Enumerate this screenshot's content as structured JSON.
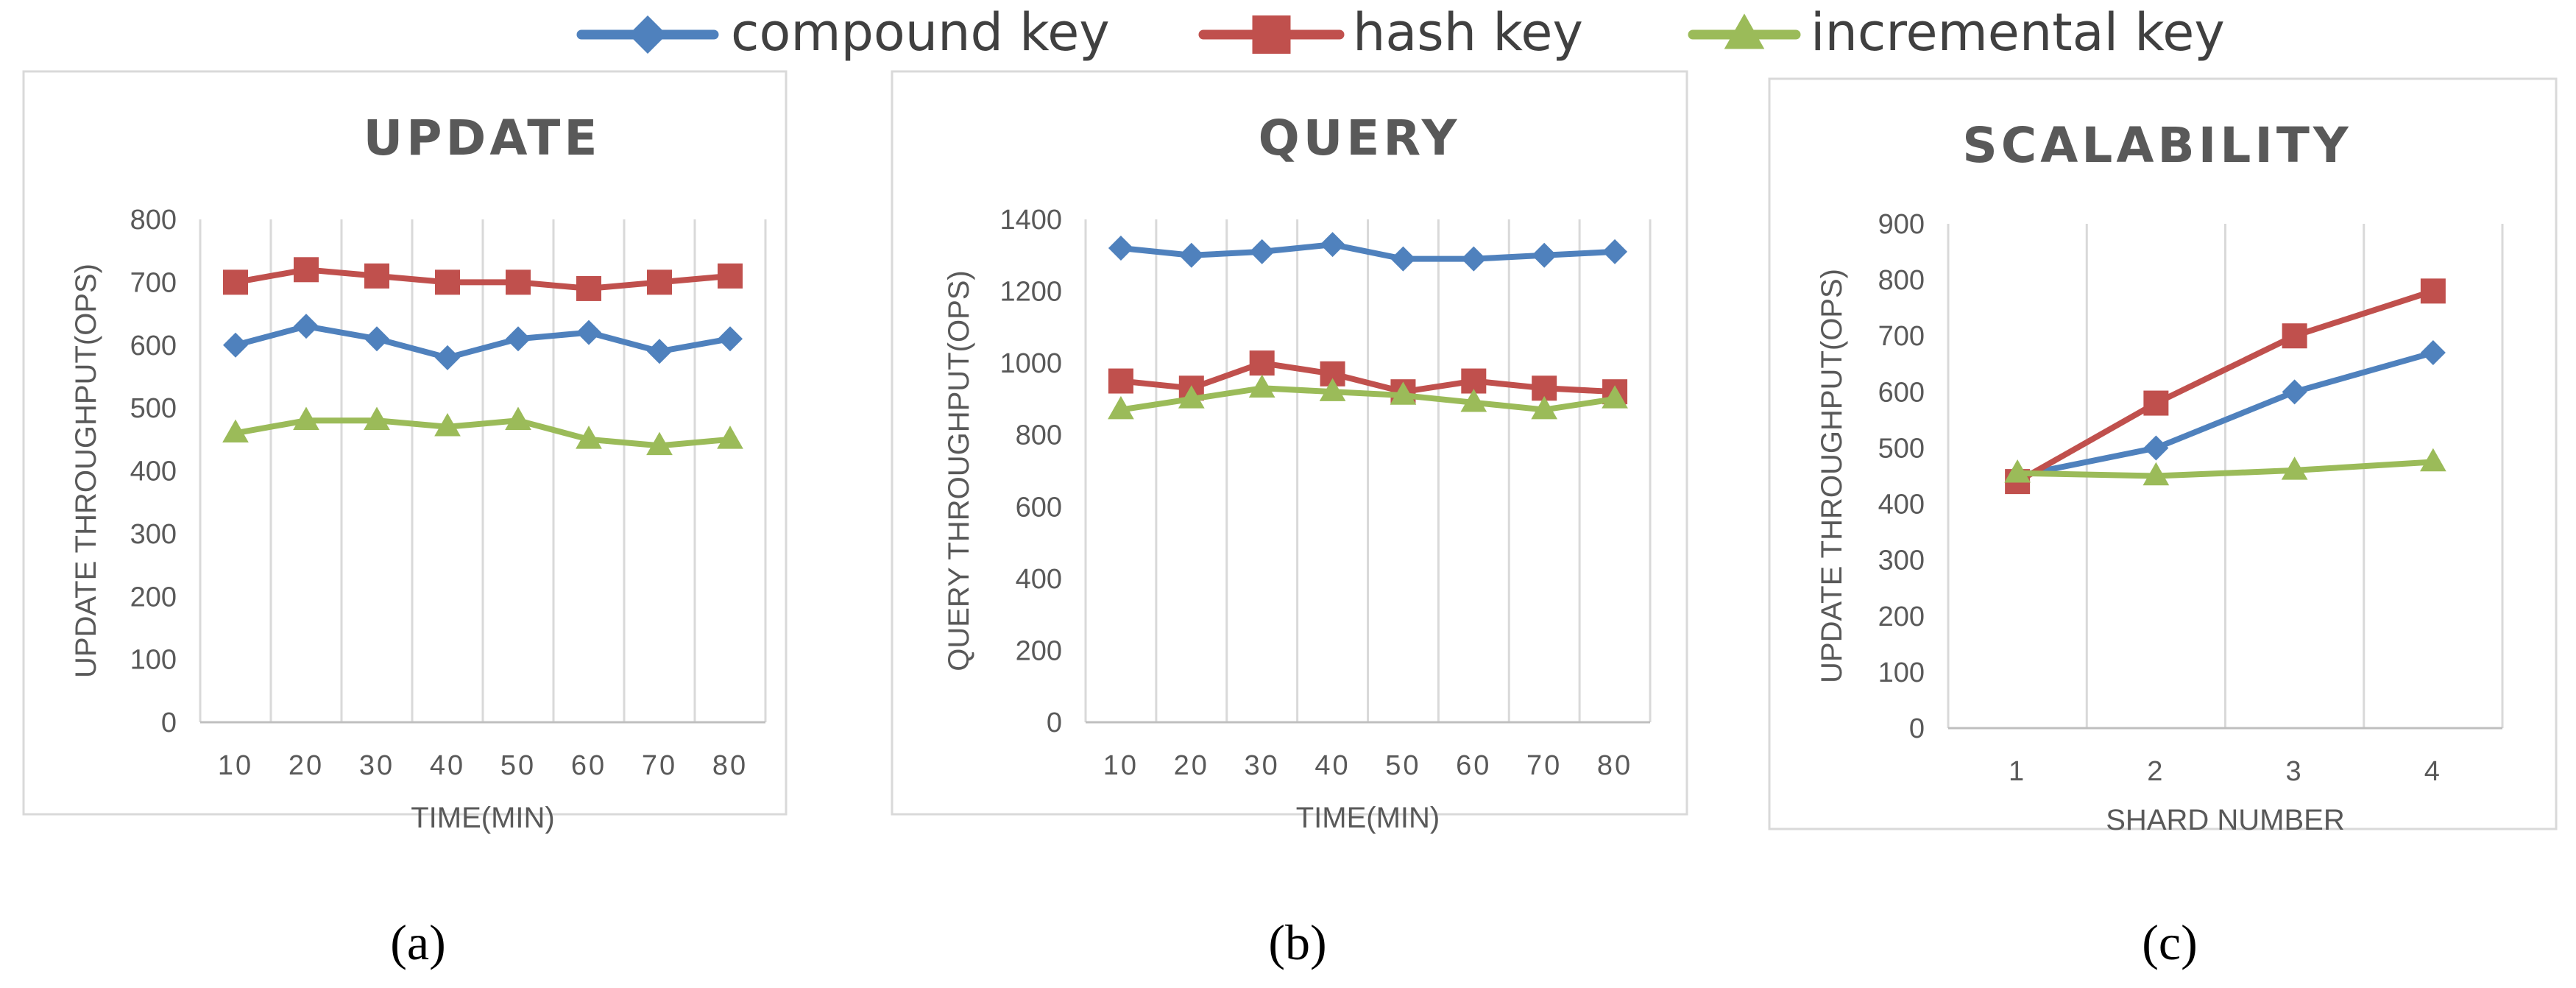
{
  "legend": [
    {
      "name": "compound key",
      "color": "#4F81BD",
      "marker": "diamond"
    },
    {
      "name": "hash key",
      "color": "#C0504D",
      "marker": "square"
    },
    {
      "name": "incremental key",
      "color": "#9BBB59",
      "marker": "triangle"
    }
  ],
  "chart_data": [
    {
      "type": "line",
      "title": "UPDATE",
      "caption": "(a)",
      "xlabel": "TIME(MIN)",
      "ylabel": "UPDATE THROUGHPUT(OPS)",
      "x": [
        10,
        20,
        30,
        40,
        50,
        60,
        70,
        80
      ],
      "x_tick_labels": [
        "10",
        "20",
        "30",
        "40",
        "50",
        "60",
        "70",
        "80"
      ],
      "ylim": [
        0,
        800
      ],
      "y_ticks": [
        0,
        100,
        200,
        300,
        400,
        500,
        600,
        700,
        800
      ],
      "grid": "vertical",
      "series": [
        {
          "name": "compound key",
          "values": [
            600,
            630,
            610,
            580,
            610,
            620,
            590,
            610
          ]
        },
        {
          "name": "hash key",
          "values": [
            700,
            720,
            710,
            700,
            700,
            690,
            700,
            710
          ]
        },
        {
          "name": "incremental key",
          "values": [
            460,
            480,
            480,
            470,
            480,
            450,
            440,
            450
          ]
        }
      ]
    },
    {
      "type": "line",
      "title": "QUERY",
      "caption": "(b)",
      "xlabel": "TIME(MIN)",
      "ylabel": "QUERY THROUGHPUT(OPS)",
      "x": [
        10,
        20,
        30,
        40,
        50,
        60,
        70,
        80
      ],
      "x_tick_labels": [
        "10",
        "20",
        "30",
        "40",
        "50",
        "60",
        "70",
        "80"
      ],
      "ylim": [
        0,
        1400
      ],
      "y_ticks": [
        0,
        200,
        400,
        600,
        800,
        1000,
        1200,
        1400
      ],
      "grid": "vertical",
      "series": [
        {
          "name": "compound key",
          "values": [
            1320,
            1300,
            1310,
            1330,
            1290,
            1290,
            1300,
            1310
          ]
        },
        {
          "name": "hash key",
          "values": [
            950,
            930,
            1000,
            970,
            920,
            950,
            930,
            920
          ]
        },
        {
          "name": "incremental key",
          "values": [
            870,
            900,
            930,
            920,
            910,
            890,
            870,
            900
          ]
        }
      ]
    },
    {
      "type": "line",
      "title": "SCALABILITY",
      "caption": "(c)",
      "xlabel": "SHARD NUMBER",
      "ylabel": "UPDATE THROUGHPUT(OPS)",
      "x": [
        1,
        2,
        3,
        4
      ],
      "x_tick_labels": [
        "1",
        "2",
        "3",
        "4"
      ],
      "ylim": [
        0,
        900
      ],
      "y_ticks": [
        0,
        100,
        200,
        300,
        400,
        500,
        600,
        700,
        800,
        900
      ],
      "grid": "vertical",
      "series": [
        {
          "name": "compound key",
          "values": [
            450,
            500,
            600,
            670
          ]
        },
        {
          "name": "hash key",
          "values": [
            440,
            580,
            700,
            780
          ]
        },
        {
          "name": "incremental key",
          "values": [
            455,
            450,
            460,
            475
          ]
        }
      ]
    }
  ]
}
